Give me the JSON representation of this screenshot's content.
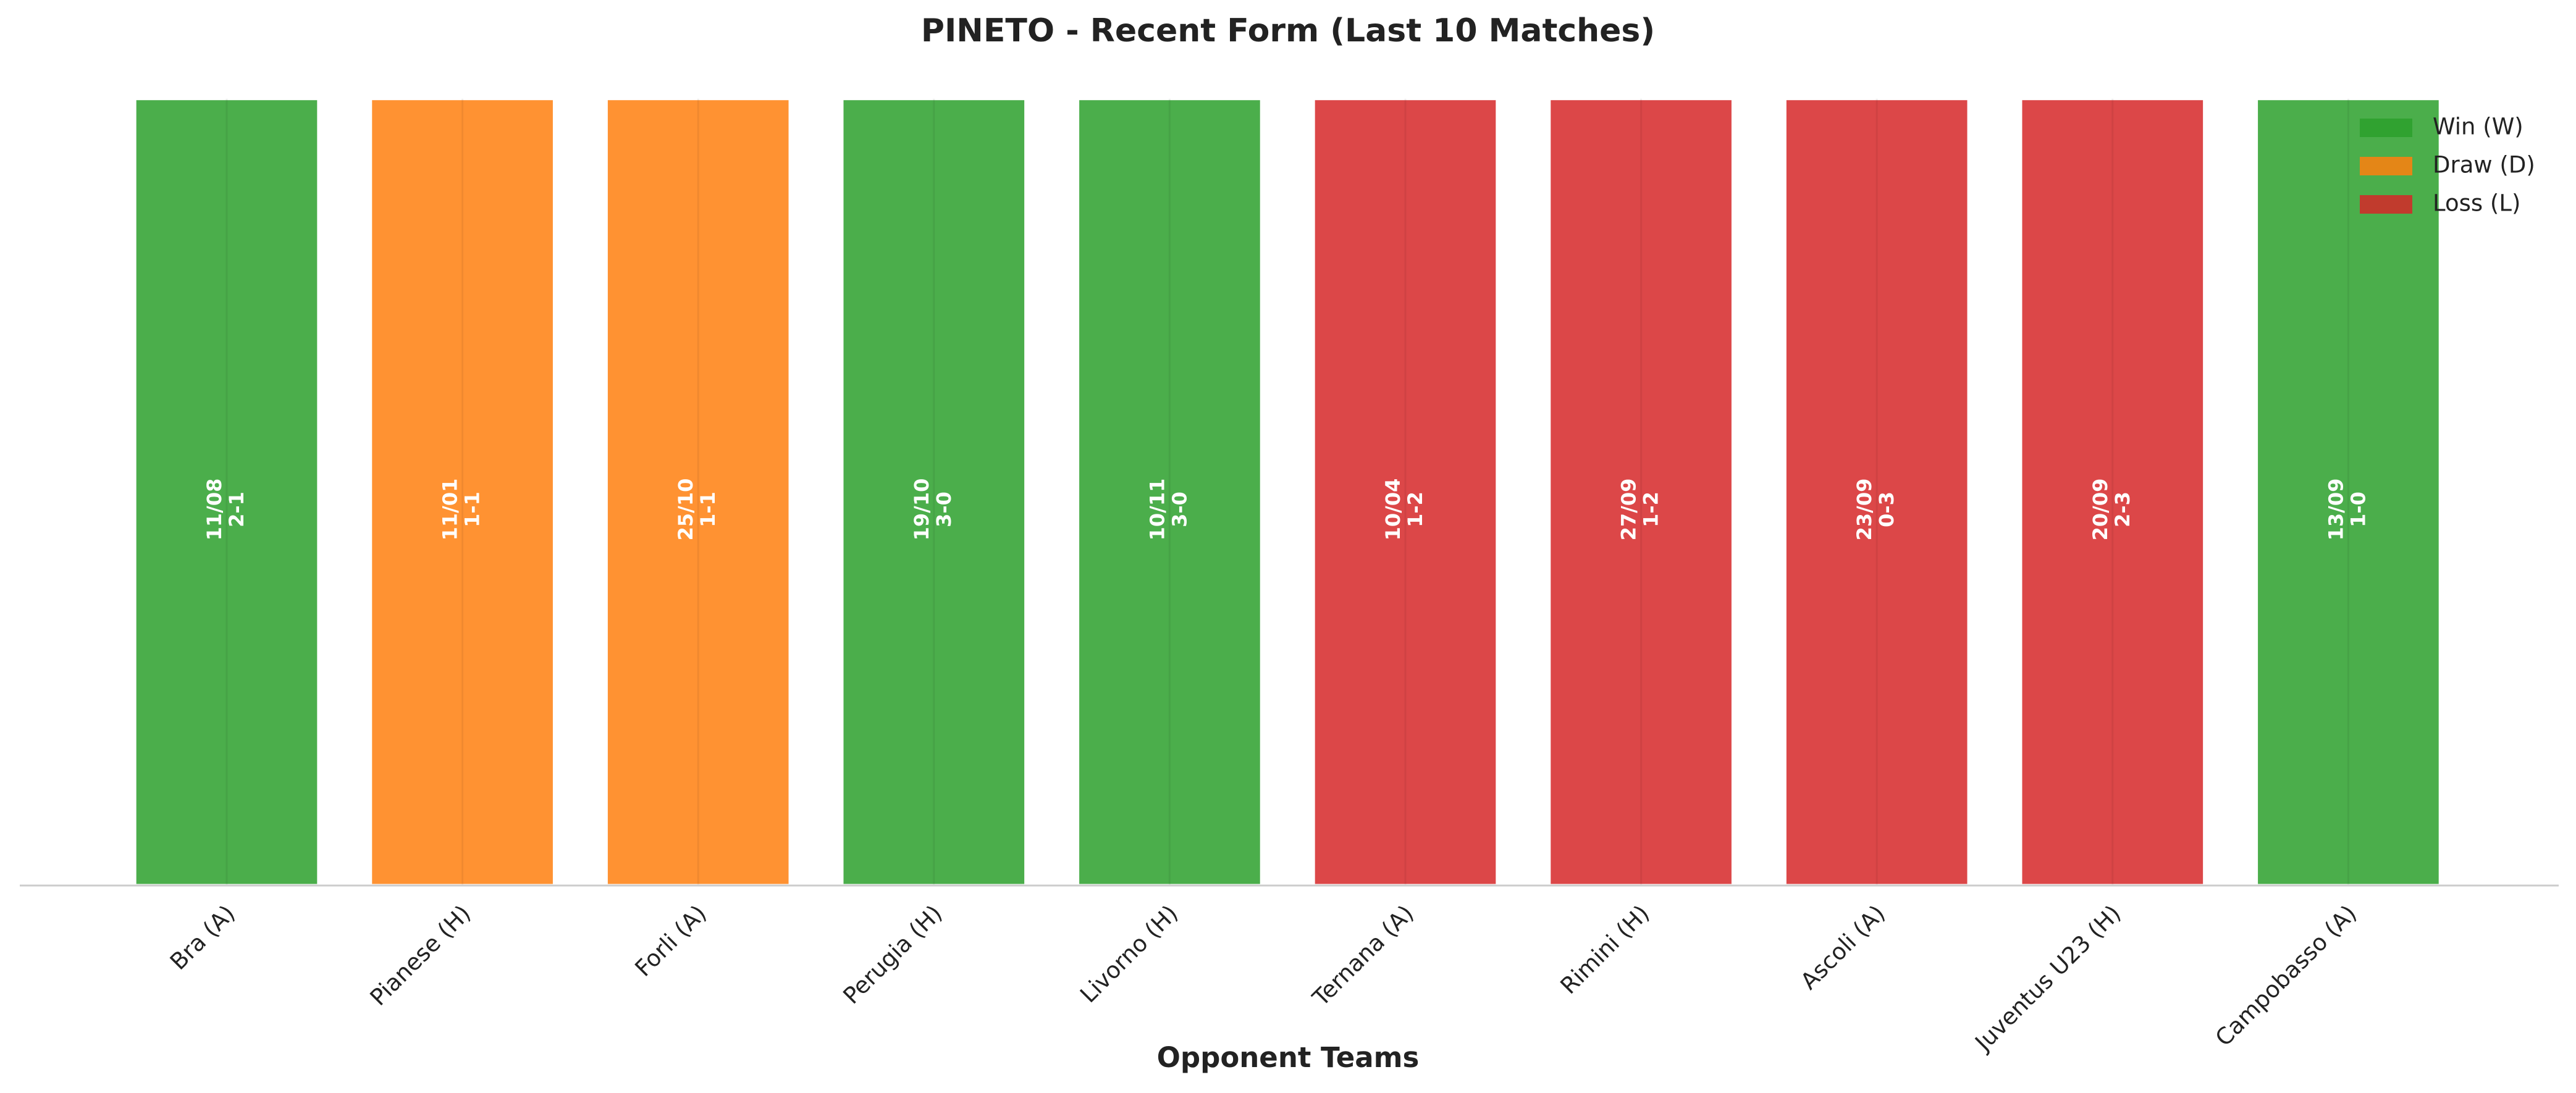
{
  "chart_data": {
    "type": "bar",
    "title": "PINETO - Recent Form (Last 10 Matches)",
    "x_label": "Opponent Teams",
    "categories": [
      "Bra (A)",
      "Pianese (H)",
      "Forli (A)",
      "Perugia (H)",
      "Livorno (H)",
      "Ternana (A)",
      "Rimini (H)",
      "Ascoli (A)",
      "Juventus U23 (H)",
      "Campobasso (A)"
    ],
    "dates": [
      "11/08",
      "11/01",
      "25/10",
      "19/10",
      "10/11",
      "10/04",
      "27/09",
      "23/09",
      "20/09",
      "13/09"
    ],
    "scores": [
      "2-1",
      "1-1",
      "1-1",
      "3-0",
      "3-0",
      "1-2",
      "1-2",
      "0-3",
      "2-3",
      "1-0"
    ],
    "series": [
      {
        "name": "Win (W)",
        "color": "#2ca02c",
        "values": [
          1,
          null,
          null,
          1,
          1,
          null,
          null,
          null,
          null,
          1
        ]
      },
      {
        "name": "Draw (D)",
        "color": "#ff7f0e",
        "values": [
          null,
          1,
          1,
          null,
          null,
          null,
          null,
          null,
          null,
          null
        ]
      },
      {
        "name": "Loss (L)",
        "color": "#d62728",
        "values": [
          null,
          null,
          null,
          null,
          null,
          1,
          1,
          1,
          1,
          null
        ]
      }
    ],
    "ylim": [
      0,
      1.05
    ],
    "legend": "upper right"
  }
}
